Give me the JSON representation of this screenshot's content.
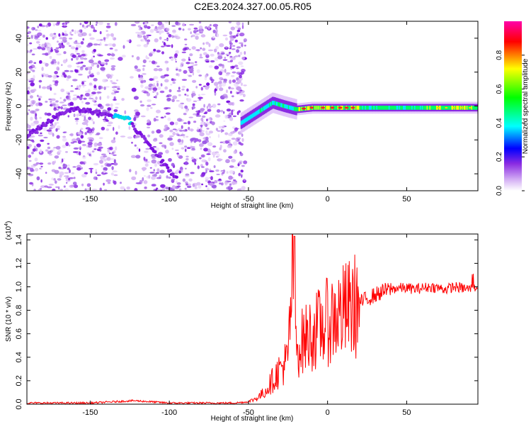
{
  "title": "C2E3.2024.327.00.05.R05",
  "chart_data": [
    {
      "type": "heatmap",
      "xlabel": "Height of straight line (km)",
      "ylabel": "Frequency (Hz)",
      "xlim": [
        -190,
        95
      ],
      "ylim": [
        -50,
        50
      ],
      "xticks": [
        -150,
        -100,
        -50,
        0,
        50
      ],
      "yticks": [
        -40,
        -20,
        0,
        20,
        40
      ],
      "colorbar": {
        "label": "Normalized spectral amplitude",
        "range": [
          0.0,
          1.0
        ],
        "ticks": [
          0.0,
          0.2,
          0.4,
          0.6,
          0.8
        ],
        "colormap": [
          "#ffffff",
          "#d8b6f5",
          "#8a2be2",
          "#0000ff",
          "#00ffff",
          "#00ff00",
          "#ffff00",
          "#ff0000",
          "#ff00aa"
        ]
      },
      "features": [
        {
          "x": [
            -190,
            -168,
            -160,
            -150,
            -140,
            -132,
            -125
          ],
          "y": [
            -18,
            -4,
            -2,
            -3,
            -5,
            -6,
            -7
          ]
        },
        {
          "x": [
            -125,
            -115,
            -105,
            -100,
            -95
          ],
          "y": [
            -10,
            -20,
            -32,
            -38,
            -42
          ]
        },
        {
          "x": [
            -55,
            -45,
            -35,
            -28,
            -20,
            -10,
            0,
            20,
            50,
            94
          ],
          "y": [
            -10,
            -4,
            2,
            0,
            -2,
            -1,
            -1,
            -1,
            -1,
            -1
          ]
        }
      ]
    },
    {
      "type": "line",
      "xlabel": "Height of straight line (km)",
      "ylabel": "SNR (10 * v/v)",
      "y_multiplier": "(x10^4)",
      "xlim": [
        -190,
        95
      ],
      "ylim": [
        0.0,
        1.45
      ],
      "xticks": [
        -150,
        -100,
        -50,
        0,
        50
      ],
      "yticks": [
        0.0,
        0.2,
        0.4,
        0.6,
        0.8,
        1.0,
        1.2,
        1.4
      ],
      "line_color": "#ff0000",
      "series": [
        {
          "x": [
            -190,
            -150,
            -122,
            -100,
            -60,
            -50,
            -45,
            -40,
            -35,
            -30,
            -25,
            -21,
            -20,
            -18,
            -15,
            -10,
            -5,
            0,
            5,
            10,
            15,
            20,
            25,
            30,
            35,
            40,
            45,
            50,
            55,
            60,
            65,
            70,
            75,
            80,
            85,
            90,
            94
          ],
          "y": [
            0.01,
            0.01,
            0.03,
            0.01,
            0.01,
            0.02,
            0.05,
            0.1,
            0.2,
            0.3,
            0.38,
            1.43,
            0.45,
            0.5,
            0.55,
            0.6,
            0.65,
            0.7,
            0.75,
            0.78,
            0.82,
            0.86,
            0.9,
            0.93,
            0.96,
            0.98,
            0.99,
            0.99,
            0.98,
            0.99,
            1.0,
            0.99,
            0.98,
            1.0,
            0.99,
            0.98,
            1.0
          ]
        }
      ]
    }
  ]
}
